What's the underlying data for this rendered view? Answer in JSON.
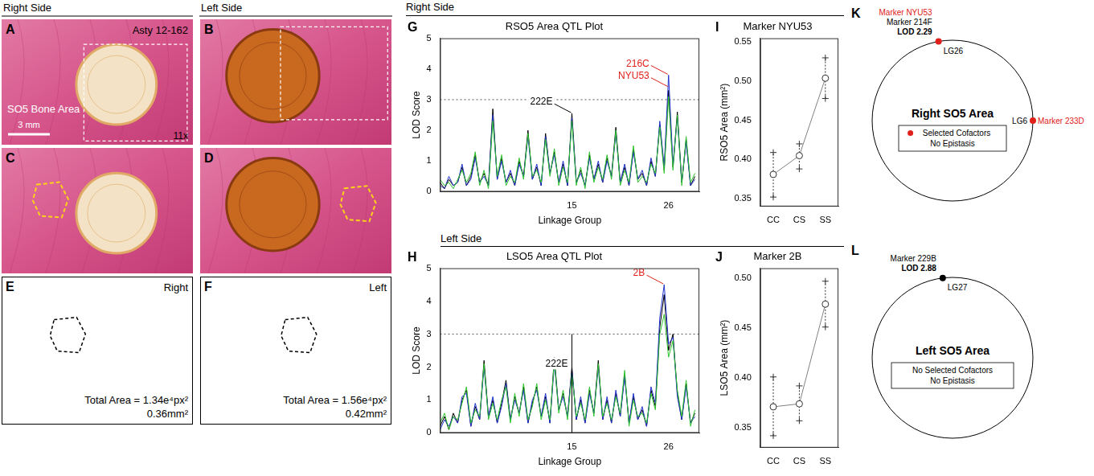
{
  "photo_headers": [
    "Right Side",
    "Left Side"
  ],
  "photo_grid": [
    [
      {
        "letter": "A",
        "specimen": "Asty 12-162",
        "caption": "SO5 Bone Area",
        "scale_bar": "3 mm",
        "magnification": "11x"
      },
      {
        "letter": "B"
      }
    ],
    [
      {
        "letter": "C"
      },
      {
        "letter": "D"
      }
    ],
    [
      {
        "letter": "E",
        "side": "Right",
        "total_area": "Total Area = 1.34e⁴px²",
        "area_mm": "0.36mm²"
      },
      {
        "letter": "F",
        "side": "Left",
        "total_area": "Total Area = 1.56e⁴px²",
        "area_mm": "0.42mm²"
      }
    ]
  ],
  "plot_headers": [
    "Right Side",
    "Left Side"
  ],
  "chart_data": [
    {
      "panel": "G",
      "type": "line",
      "title": "RSO5 Area QTL Plot",
      "x_label": "Linkage Group",
      "y_label": "LOD Score",
      "x": [
        0,
        0.5,
        1,
        1.5,
        2,
        2.5,
        3,
        3.5,
        4,
        4.5,
        5,
        5.5,
        6,
        6.5,
        7,
        7.5,
        8,
        8.5,
        9,
        9.5,
        10,
        10.5,
        11,
        11.5,
        12,
        12.5,
        13,
        13.5,
        14,
        14.5,
        15,
        15.5,
        16,
        16.5,
        17,
        17.5,
        18,
        18.5,
        19,
        19.5,
        20,
        20.5,
        21,
        21.5,
        22,
        22.5,
        23,
        23.5,
        24,
        24.5,
        25,
        25.5,
        26,
        26.5,
        27,
        27.5,
        28,
        28.5,
        29
      ],
      "series": [
        {
          "color": "#2fc42f",
          "values": [
            0.4,
            0.2,
            0.3,
            0.1,
            0.4,
            0.7,
            0.3,
            0.6,
            1.3,
            0.2,
            0.7,
            0.1,
            2.3,
            0.5,
            1.2,
            0.2,
            0.5,
            0.3,
            1.1,
            0.4,
            1.9,
            0.5,
            0.7,
            0.3,
            1.7,
            0.5,
            1.4,
            0.2,
            0.8,
            0.3,
            2.3,
            0.2,
            0.8,
            0.1,
            1.3,
            0.3,
            0.8,
            0.4,
            1.2,
            0.4,
            2.0,
            0.2,
            0.7,
            0.3,
            1.5,
            0.3,
            0.5,
            0.3,
            0.9,
            0.6,
            2.1,
            0.6,
            3.1,
            0.7,
            2.5,
            0.2,
            1.8,
            0.3,
            0.6
          ]
        },
        {
          "color": "#2233cc",
          "values": [
            0.2,
            0.1,
            0.5,
            0.2,
            0.3,
            0.9,
            0.2,
            0.4,
            1.1,
            0.3,
            0.5,
            0.2,
            2.5,
            0.4,
            1.0,
            0.3,
            0.7,
            0.2,
            0.9,
            0.5,
            1.8,
            0.4,
            0.9,
            0.2,
            1.8,
            0.6,
            1.2,
            0.3,
            1.0,
            0.2,
            2.4,
            0.3,
            0.6,
            0.2,
            1.1,
            0.4,
            1.0,
            0.3,
            1.0,
            0.5,
            1.9,
            0.3,
            0.9,
            0.2,
            1.3,
            0.4,
            0.7,
            0.2,
            1.1,
            0.5,
            2.3,
            0.8,
            3.8,
            0.9,
            2.4,
            0.3,
            1.6,
            0.2,
            0.4
          ]
        },
        {
          "color": "#000000",
          "values": [
            0.3,
            0.1,
            0.4,
            0.2,
            0.3,
            0.8,
            0.2,
            0.5,
            1.2,
            0.3,
            0.6,
            0.2,
            2.7,
            0.4,
            1.1,
            0.3,
            0.6,
            0.2,
            1.0,
            0.5,
            2.0,
            0.4,
            0.8,
            0.2,
            1.9,
            0.6,
            1.3,
            0.3,
            0.9,
            0.2,
            2.55,
            0.3,
            0.7,
            0.2,
            1.2,
            0.4,
            0.9,
            0.3,
            1.1,
            0.5,
            2.1,
            0.3,
            0.8,
            0.2,
            1.4,
            0.4,
            0.6,
            0.2,
            1.0,
            0.5,
            2.2,
            0.7,
            3.3,
            0.8,
            2.6,
            0.3,
            1.7,
            0.2,
            0.5
          ]
        }
      ],
      "xlim": [
        0,
        29.5
      ],
      "xticks": [
        15,
        26
      ],
      "ylim": [
        0,
        5
      ],
      "yticks": [
        0,
        1,
        2,
        3,
        4,
        5
      ],
      "threshold": 3,
      "grid": false,
      "annotations": [
        {
          "text": "222E",
          "x": 15,
          "y": 2.55,
          "color": "#000000"
        },
        {
          "text": "216C",
          "x": 26,
          "y": 3.8,
          "color": "#e0201a"
        },
        {
          "text": "NYU53",
          "x": 26,
          "y": 3.4,
          "color": "#e0201a"
        }
      ]
    },
    {
      "panel": "H",
      "type": "line",
      "title": "LSO5 Area QTL Plot",
      "x_label": "Linkage Group",
      "y_label": "LOD Score",
      "x": [
        0,
        0.5,
        1,
        1.5,
        2,
        2.5,
        3,
        3.5,
        4,
        4.5,
        5,
        5.5,
        6,
        6.5,
        7,
        7.5,
        8,
        8.5,
        9,
        9.5,
        10,
        10.5,
        11,
        11.5,
        12,
        12.5,
        13,
        13.5,
        14,
        14.5,
        15,
        15.5,
        16,
        16.5,
        17,
        17.5,
        18,
        18.5,
        19,
        19.5,
        20,
        20.5,
        21,
        21.5,
        22,
        22.5,
        23,
        23.5,
        24,
        24.5,
        25,
        25.5,
        26,
        26.5,
        27,
        27.5,
        28,
        28.5,
        29
      ],
      "series": [
        {
          "color": "#2fc42f",
          "values": [
            0.3,
            0.6,
            0.1,
            0.5,
            0.4,
            0.9,
            1.4,
            0.3,
            0.7,
            0.5,
            2.1,
            0.4,
            0.9,
            0.4,
            1.0,
            1.4,
            0.3,
            1.2,
            0.5,
            1.5,
            0.4,
            0.8,
            1.5,
            0.4,
            1.0,
            0.4,
            2.2,
            0.6,
            1.3,
            0.4,
            1.8,
            0.5,
            0.9,
            0.4,
            1.4,
            0.5,
            2.1,
            0.5,
            0.9,
            0.4,
            1.1,
            0.6,
            1.9,
            0.2,
            1.0,
            0.5,
            0.6,
            0.3,
            1.2,
            0.7,
            3.0,
            3.6,
            2.3,
            2.8,
            1.3,
            0.5,
            1.6,
            0.2,
            0.7
          ]
        },
        {
          "color": "#2233cc",
          "values": [
            0.1,
            0.4,
            0.2,
            0.5,
            0.3,
            1.1,
            1.2,
            0.2,
            0.9,
            0.4,
            2.0,
            0.5,
            1.1,
            0.3,
            0.8,
            1.5,
            0.4,
            1.0,
            0.6,
            1.3,
            0.3,
            1.0,
            1.3,
            0.5,
            1.2,
            0.3,
            2.1,
            0.7,
            1.1,
            0.5,
            1.9,
            0.4,
            1.1,
            0.3,
            1.2,
            0.6,
            2.0,
            0.4,
            1.1,
            0.3,
            1.3,
            0.5,
            1.7,
            0.3,
            1.2,
            0.4,
            0.8,
            0.2,
            1.4,
            0.9,
            3.5,
            4.5,
            2.7,
            2.9,
            1.1,
            0.4,
            1.4,
            0.3,
            0.5
          ]
        },
        {
          "color": "#000000",
          "values": [
            0.2,
            0.5,
            0.1,
            0.6,
            0.3,
            1.0,
            1.3,
            0.2,
            0.8,
            0.4,
            2.2,
            0.5,
            1.0,
            0.3,
            0.9,
            1.6,
            0.4,
            1.1,
            0.6,
            1.4,
            0.3,
            0.9,
            1.4,
            0.5,
            1.1,
            0.3,
            2.3,
            0.7,
            1.2,
            0.5,
            2.0,
            0.4,
            1.0,
            0.3,
            1.3,
            0.6,
            2.2,
            0.4,
            1.0,
            0.3,
            1.2,
            0.5,
            1.8,
            0.3,
            1.1,
            0.4,
            0.7,
            0.2,
            1.3,
            0.8,
            3.2,
            4.2,
            2.5,
            3.0,
            1.2,
            0.4,
            1.5,
            0.3,
            0.6
          ]
        }
      ],
      "xlim": [
        0,
        29.5
      ],
      "xticks": [
        15,
        26
      ],
      "ylim": [
        0,
        5
      ],
      "yticks": [
        0,
        1,
        2,
        3,
        4,
        5
      ],
      "threshold": 3,
      "grid": false,
      "annotations": [
        {
          "text": "2B",
          "x": 25.5,
          "y": 4.5,
          "color": "#e0201a"
        },
        {
          "text": "222E",
          "x": 15,
          "y": 3,
          "color": "#000000",
          "line_style": "vertical"
        }
      ]
    },
    {
      "panel": "I",
      "type": "line",
      "title": "Marker NYU53",
      "y_label": "RSO5 Area (mm²)",
      "categories": [
        "CC",
        "CS",
        "SS"
      ],
      "values": [
        0.381,
        0.405,
        0.504
      ],
      "error_low": [
        0.352,
        0.388,
        0.478
      ],
      "error_high": [
        0.409,
        0.42,
        0.53
      ],
      "color": "#808080",
      "marker": "circle",
      "ylim": [
        0.34,
        0.555
      ],
      "yticks": [
        0.35,
        {
          "value": 0.4,
          "label": "0.40"
        },
        0.45,
        {
          "value": 0.5,
          "label": "0.50"
        },
        0.55
      ],
      "grid": false
    },
    {
      "panel": "J",
      "type": "line",
      "title": "Marker 2B",
      "y_label": "LSO5 Area (mm²)",
      "categories": [
        "CC",
        "CS",
        "SS"
      ],
      "values": [
        0.371,
        0.374,
        0.474
      ],
      "error_low": [
        0.342,
        0.357,
        0.451
      ],
      "error_high": [
        0.401,
        0.392,
        0.497
      ],
      "color": "#808080",
      "marker": "circle",
      "ylim": [
        0.33,
        0.51
      ],
      "yticks": [
        0.35,
        {
          "value": 0.4,
          "label": "0.40"
        },
        0.45,
        {
          "value": 0.5,
          "label": "0.50"
        }
      ],
      "grid": false
    }
  ],
  "circle_plots": [
    {
      "panel": "K",
      "title": "Right SO5 Area",
      "markers": [
        {
          "lines": [
            "Marker NYU53",
            "Marker 214F",
            "LOD 2.29"
          ],
          "line_colors": [
            "#e0201a",
            "#000000",
            "#000000"
          ],
          "group": "LG26",
          "position": "top",
          "color": "#e0201a"
        },
        {
          "lines": [
            "Marker 233D"
          ],
          "line_colors": [
            "#e0201a"
          ],
          "group": "LG6",
          "position": "right",
          "color": "#e0201a"
        }
      ],
      "legend_lines": [
        "Selected Cofactors",
        "No Epistasis"
      ],
      "legend_marker_color": "#e0201a"
    },
    {
      "panel": "L",
      "title": "Left SO5 Area",
      "markers": [
        {
          "lines": [
            "Marker 229B",
            "LOD 2.88"
          ],
          "line_colors": [
            "#000000",
            "#000000"
          ],
          "group": "LG27",
          "position": "top",
          "color": "#000000"
        }
      ],
      "legend_lines": [
        "No Selected Cofactors",
        "No Epistasis"
      ]
    }
  ]
}
